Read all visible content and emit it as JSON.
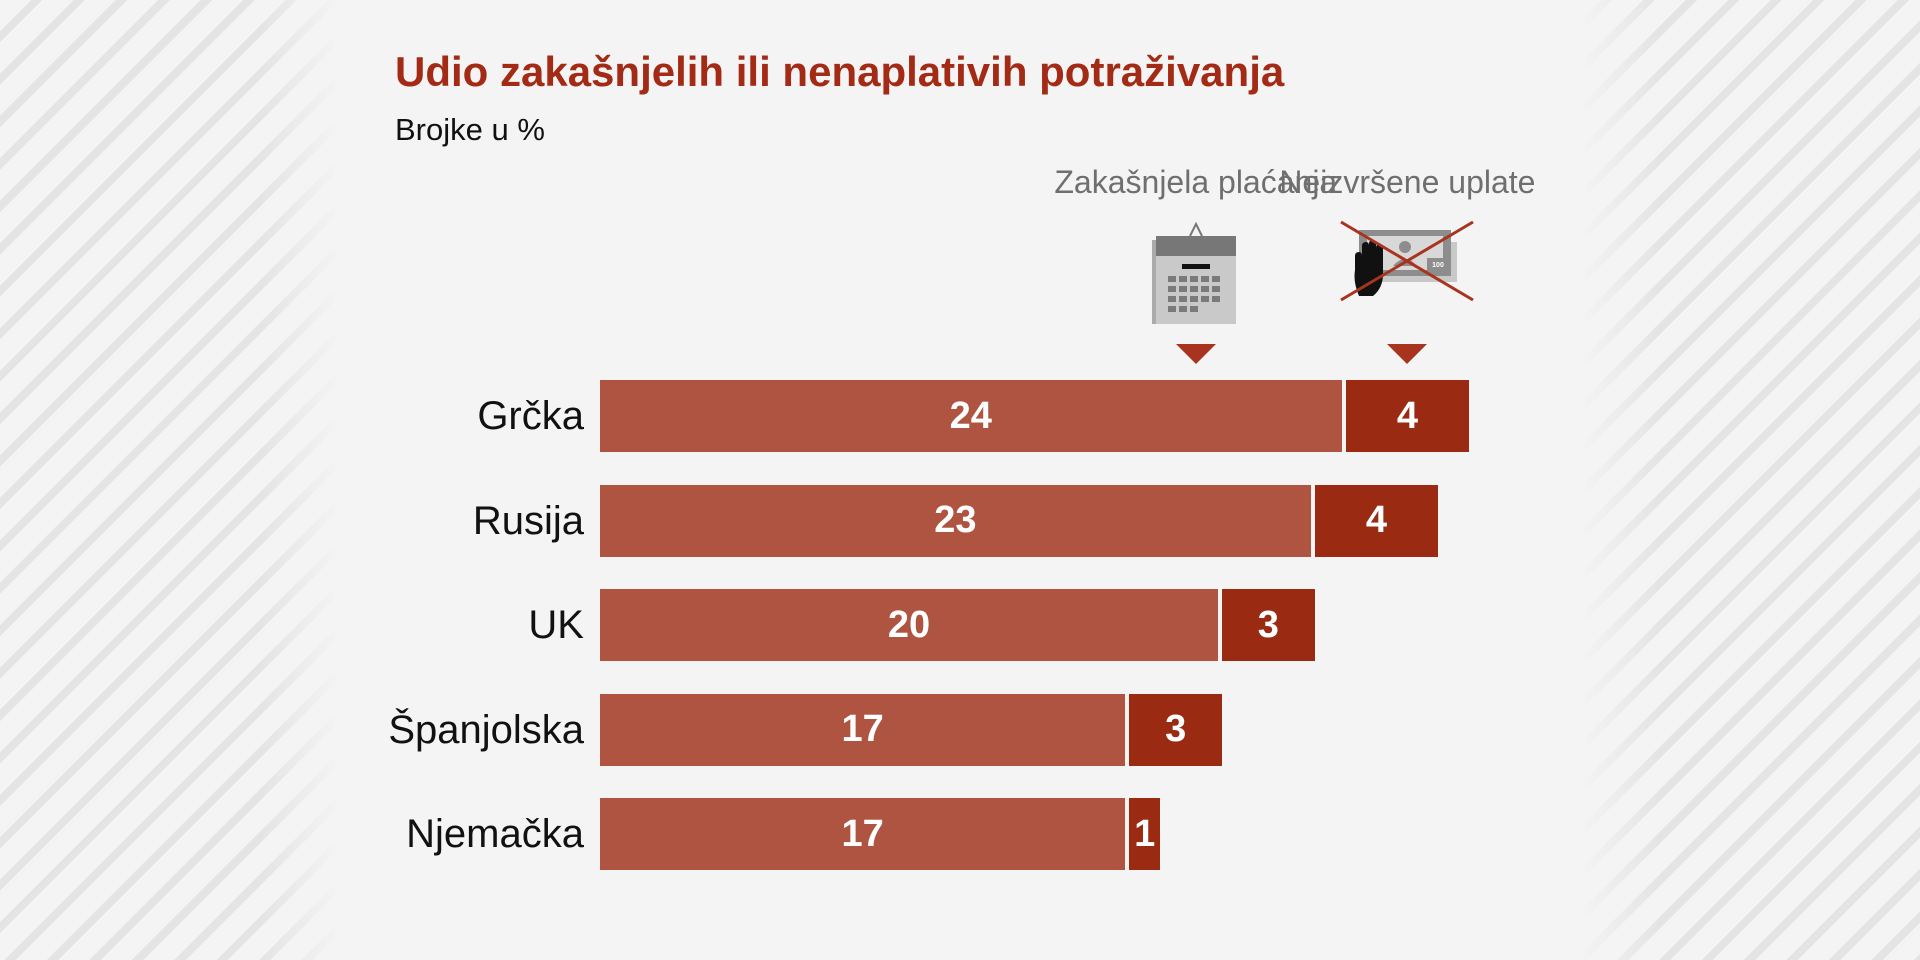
{
  "chart_data": {
    "type": "bar",
    "orientation": "horizontal",
    "stacked": true,
    "title": "Udio zakašnjelih ili nenaplativih potraživanja",
    "subtitle": "Brojke u %",
    "categories": [
      "Grčka",
      "Rusija",
      "UK",
      "Španjolska",
      "Njemačka"
    ],
    "series": [
      {
        "name": "Zakašnjela plaćanja",
        "icon": "calendar-icon",
        "color": "#b05442",
        "values": [
          24,
          23,
          20,
          17,
          17
        ]
      },
      {
        "name": "Neizvršene uplate",
        "icon": "blocked-payment-icon",
        "color": "#9b2a12",
        "values": [
          4,
          4,
          3,
          3,
          1
        ]
      }
    ],
    "grid": false,
    "legend": "top, above bars with icons"
  }
}
